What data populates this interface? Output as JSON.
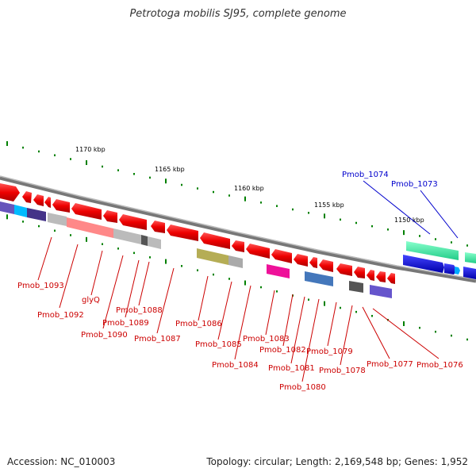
{
  "title": "Petrotoga mobilis SJ95, complete genome",
  "footer": {
    "accession": "Accession: NC_010003",
    "topology": "Topology: circular; Length: 2,169,548 bp; Genes: 1,952"
  },
  "ruler_labels": [
    "1170 kbp",
    "1165 kbp",
    "1160 kbp",
    "1155 kbp",
    "1150 kbp"
  ],
  "colors": {
    "backbone": "#808080",
    "forward_gene": "#ee0000",
    "reverse_gene": "#ee0000",
    "label_red": "#cc0000",
    "label_blue": "#0000cc",
    "tick": "#008000"
  },
  "gene_labels": {
    "top": [
      "Pmob_1074",
      "Pmob_1073"
    ],
    "bottom": [
      "Pmob_1093",
      "Pmob_1092",
      "glyQ",
      "Pmob_1090",
      "Pmob_1089",
      "Pmob_1088",
      "Pmob_1087",
      "Pmob_1086",
      "Pmob_1085",
      "Pmob_1084",
      "Pmob_1083",
      "Pmob_1082",
      "Pmob_1081",
      "Pmob_1080",
      "Pmob_1079",
      "Pmob_1078",
      "Pmob_1077",
      "Pmob_1076"
    ]
  }
}
